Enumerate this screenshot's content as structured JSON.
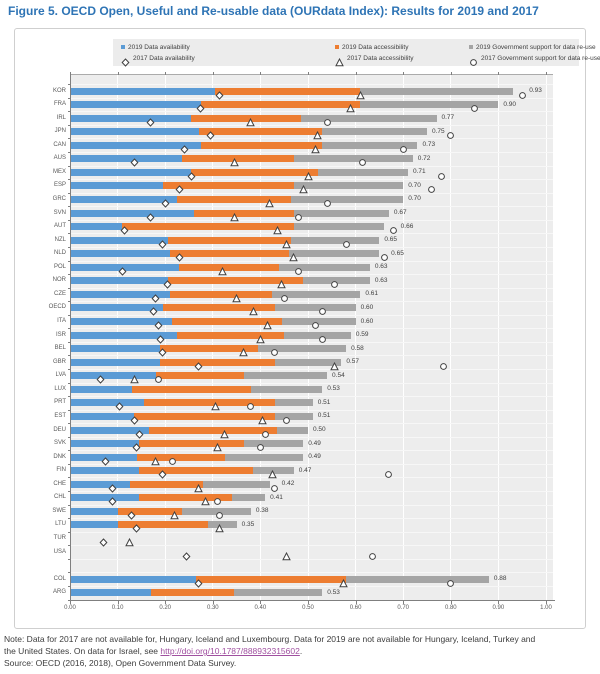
{
  "title": "Figure 5. OECD Open, Useful and Re-usable data (OURdata Index): Results for 2019 and 2017",
  "legend": {
    "items_2019": [
      {
        "label": "2019 Data availability",
        "color": "#5B9BD5",
        "marker": "square"
      },
      {
        "label": "2019 Data accessibility",
        "color": "#ED7D31",
        "marker": "square"
      },
      {
        "label": "2019 Government support for data re-use",
        "color": "#A5A5A5",
        "marker": "square"
      }
    ],
    "items_2017": [
      {
        "label": "2017 Data availability",
        "marker": "diamond"
      },
      {
        "label": "2017 Data accessibility",
        "marker": "triangle"
      },
      {
        "label": "2017 Government support for data re-use",
        "marker": "circle"
      }
    ]
  },
  "chart_data": {
    "type": "bar",
    "orientation": "horizontal-stacked",
    "xlim": [
      0,
      1
    ],
    "xticks": [
      "0.00",
      "0.10",
      "0.20",
      "0.30",
      "0.40",
      "0.50",
      "0.60",
      "0.70",
      "0.80",
      "0.90",
      "1.00"
    ],
    "grid": "white vertical gridlines on light-gray panel",
    "legend_position": "top",
    "series": [
      "2019 Data availability",
      "2019 Data accessibility",
      "2019 Government support for data re-use"
    ],
    "markers_2017": [
      "2017 Data availability (diamond)",
      "2017 Data availability + accessibility (triangle)",
      "2017 Overall index (circle)"
    ],
    "colors": {
      "availability": "#5B9BD5",
      "accessibility": "#ED7D31",
      "gov_support": "#A5A5A5",
      "marker_stroke": "#404040"
    },
    "rows": [
      {
        "code": "KOR",
        "availability": 0.305,
        "accessibility": 0.305,
        "gov_support": 0.32,
        "total": 0.93,
        "total_label": "0.93",
        "m2017": {
          "availability": 0.315,
          "accessibility_cum": 0.61,
          "total": 0.95
        }
      },
      {
        "code": "FRA",
        "availability": 0.275,
        "accessibility": 0.335,
        "gov_support": 0.29,
        "total": 0.9,
        "total_label": "0.90",
        "m2017": {
          "availability": 0.275,
          "accessibility_cum": 0.59,
          "total": 0.85
        }
      },
      {
        "code": "IRL",
        "availability": 0.255,
        "accessibility": 0.23,
        "gov_support": 0.285,
        "total": 0.77,
        "total_label": "0.77",
        "m2017": {
          "availability": 0.17,
          "accessibility_cum": 0.38,
          "total": 0.54
        }
      },
      {
        "code": "JPN",
        "availability": 0.27,
        "accessibility": 0.26,
        "gov_support": 0.22,
        "total": 0.75,
        "total_label": "0.75",
        "m2017": {
          "availability": 0.295,
          "accessibility_cum": 0.52,
          "total": 0.8
        }
      },
      {
        "code": "CAN",
        "availability": 0.275,
        "accessibility": 0.255,
        "gov_support": 0.2,
        "total": 0.73,
        "total_label": "0.73",
        "m2017": {
          "availability": 0.24,
          "accessibility_cum": 0.515,
          "total": 0.7
        }
      },
      {
        "code": "AUS",
        "availability": 0.235,
        "accessibility": 0.235,
        "gov_support": 0.25,
        "total": 0.72,
        "total_label": "0.72",
        "m2017": {
          "availability": 0.135,
          "accessibility_cum": 0.345,
          "total": 0.615
        }
      },
      {
        "code": "MEX",
        "availability": 0.255,
        "accessibility": 0.265,
        "gov_support": 0.19,
        "total": 0.71,
        "total_label": "0.71",
        "m2017": {
          "availability": 0.255,
          "accessibility_cum": 0.5,
          "total": 0.78
        }
      },
      {
        "code": "ESP",
        "availability": 0.195,
        "accessibility": 0.275,
        "gov_support": 0.23,
        "total": 0.7,
        "total_label": "0.70",
        "m2017": {
          "availability": 0.23,
          "accessibility_cum": 0.49,
          "total": 0.76
        }
      },
      {
        "code": "GRC",
        "availability": 0.225,
        "accessibility": 0.24,
        "gov_support": 0.235,
        "total": 0.7,
        "total_label": "0.70",
        "m2017": {
          "availability": 0.2,
          "accessibility_cum": 0.42,
          "total": 0.54
        }
      },
      {
        "code": "SVN",
        "availability": 0.26,
        "accessibility": 0.21,
        "gov_support": 0.2,
        "total": 0.67,
        "total_label": "0.67",
        "m2017": {
          "availability": 0.17,
          "accessibility_cum": 0.345,
          "total": 0.48
        }
      },
      {
        "code": "AUT",
        "availability": 0.11,
        "accessibility": 0.36,
        "gov_support": 0.19,
        "total": 0.66,
        "total_label": "0.66",
        "m2017": {
          "availability": 0.115,
          "accessibility_cum": 0.435,
          "total": 0.68
        }
      },
      {
        "code": "NZL",
        "availability": 0.205,
        "accessibility": 0.26,
        "gov_support": 0.185,
        "total": 0.65,
        "total_label": "0.65",
        "m2017": {
          "availability": 0.195,
          "accessibility_cum": 0.455,
          "total": 0.58
        }
      },
      {
        "code": "NLD",
        "availability": 0.21,
        "accessibility": 0.25,
        "gov_support": 0.19,
        "total": 0.65,
        "total_label": "0.65",
        "m2017": {
          "availability": 0.23,
          "accessibility_cum": 0.47,
          "total": 0.66
        }
      },
      {
        "code": "POL",
        "availability": 0.23,
        "accessibility": 0.21,
        "gov_support": 0.19,
        "total": 0.63,
        "total_label": "0.63",
        "m2017": {
          "availability": 0.11,
          "accessibility_cum": 0.32,
          "total": 0.48
        }
      },
      {
        "code": "NOR",
        "availability": 0.205,
        "accessibility": 0.285,
        "gov_support": 0.14,
        "total": 0.63,
        "total_label": "0.63",
        "m2017": {
          "availability": 0.205,
          "accessibility_cum": 0.445,
          "total": 0.555
        }
      },
      {
        "code": "CZE",
        "availability": 0.21,
        "accessibility": 0.215,
        "gov_support": 0.185,
        "total": 0.61,
        "total_label": "0.61",
        "m2017": {
          "availability": 0.18,
          "accessibility_cum": 0.35,
          "total": 0.45
        }
      },
      {
        "code": "OECD",
        "availability": 0.195,
        "accessibility": 0.235,
        "gov_support": 0.17,
        "total": 0.6,
        "total_label": "0.60",
        "m2017": {
          "availability": 0.175,
          "accessibility_cum": 0.385,
          "total": 0.53
        }
      },
      {
        "code": "ITA",
        "availability": 0.215,
        "accessibility": 0.23,
        "gov_support": 0.155,
        "total": 0.6,
        "total_label": "0.60",
        "m2017": {
          "availability": 0.185,
          "accessibility_cum": 0.415,
          "total": 0.515
        }
      },
      {
        "code": "ISR",
        "availability": 0.225,
        "accessibility": 0.225,
        "gov_support": 0.14,
        "total": 0.59,
        "total_label": "0.59",
        "m2017": {
          "availability": 0.19,
          "accessibility_cum": 0.4,
          "total": 0.53
        }
      },
      {
        "code": "BEL",
        "availability": 0.19,
        "accessibility": 0.205,
        "gov_support": 0.185,
        "total": 0.58,
        "total_label": "0.58",
        "m2017": {
          "availability": 0.195,
          "accessibility_cum": 0.365,
          "total": 0.43
        }
      },
      {
        "code": "GBR",
        "availability": 0.19,
        "accessibility": 0.24,
        "gov_support": 0.14,
        "total": 0.57,
        "total_label": "0.57",
        "m2017": {
          "availability": 0.27,
          "accessibility_cum": 0.555,
          "total": 0.785
        }
      },
      {
        "code": "LVA",
        "availability": 0.18,
        "accessibility": 0.185,
        "gov_support": 0.175,
        "total": 0.54,
        "total_label": "0.54",
        "m2017": {
          "availability": 0.065,
          "accessibility_cum": 0.135,
          "total": 0.185
        }
      },
      {
        "code": "LUX",
        "availability": 0.13,
        "accessibility": 0.25,
        "gov_support": 0.15,
        "total": 0.53,
        "total_label": "0.53",
        "m2017": null
      },
      {
        "code": "PRT",
        "availability": 0.155,
        "accessibility": 0.275,
        "gov_support": 0.08,
        "total": 0.51,
        "total_label": "0.51",
        "m2017": {
          "availability": 0.105,
          "accessibility_cum": 0.305,
          "total": 0.38
        }
      },
      {
        "code": "EST",
        "availability": 0.135,
        "accessibility": 0.295,
        "gov_support": 0.08,
        "total": 0.51,
        "total_label": "0.51",
        "m2017": {
          "availability": 0.135,
          "accessibility_cum": 0.405,
          "total": 0.455
        }
      },
      {
        "code": "DEU",
        "availability": 0.165,
        "accessibility": 0.27,
        "gov_support": 0.065,
        "total": 0.5,
        "total_label": "0.50",
        "m2017": {
          "availability": 0.145,
          "accessibility_cum": 0.325,
          "total": 0.41
        }
      },
      {
        "code": "SVK",
        "availability": 0.145,
        "accessibility": 0.22,
        "gov_support": 0.125,
        "total": 0.49,
        "total_label": "0.49",
        "m2017": {
          "availability": 0.14,
          "accessibility_cum": 0.31,
          "total": 0.4
        }
      },
      {
        "code": "DNK",
        "availability": 0.14,
        "accessibility": 0.185,
        "gov_support": 0.165,
        "total": 0.49,
        "total_label": "0.49",
        "m2017": {
          "availability": 0.075,
          "accessibility_cum": 0.18,
          "total": 0.215
        }
      },
      {
        "code": "FIN",
        "availability": 0.145,
        "accessibility": 0.24,
        "gov_support": 0.085,
        "total": 0.47,
        "total_label": "0.47",
        "m2017": {
          "availability": 0.195,
          "accessibility_cum": 0.425,
          "total": 0.67
        }
      },
      {
        "code": "CHE",
        "availability": 0.125,
        "accessibility": 0.155,
        "gov_support": 0.14,
        "total": 0.42,
        "total_label": "0.42",
        "m2017": {
          "availability": 0.09,
          "accessibility_cum": 0.27,
          "total": 0.43
        }
      },
      {
        "code": "CHL",
        "availability": 0.145,
        "accessibility": 0.195,
        "gov_support": 0.07,
        "total": 0.41,
        "total_label": "0.41",
        "m2017": {
          "availability": 0.09,
          "accessibility_cum": 0.285,
          "total": 0.31
        }
      },
      {
        "code": "SWE",
        "availability": 0.1,
        "accessibility": 0.135,
        "gov_support": 0.145,
        "total": 0.38,
        "total_label": "0.38",
        "m2017": {
          "availability": 0.13,
          "accessibility_cum": 0.22,
          "total": 0.315
        }
      },
      {
        "code": "LTU",
        "availability": 0.1,
        "accessibility": 0.19,
        "gov_support": 0.06,
        "total": 0.35,
        "total_label": "0.35",
        "m2017": {
          "availability": 0.14,
          "accessibility_cum": 0.315,
          "total": null
        }
      },
      {
        "code": "TUR",
        "availability": null,
        "accessibility": null,
        "gov_support": null,
        "total": null,
        "total_label": "",
        "m2017": {
          "availability": 0.07,
          "accessibility_cum": 0.125,
          "total": null
        }
      },
      {
        "code": "USA",
        "availability": null,
        "accessibility": null,
        "gov_support": null,
        "total": null,
        "total_label": "",
        "m2017": {
          "availability": 0.245,
          "accessibility_cum": 0.455,
          "total": 0.635
        }
      },
      {
        "code": "COL",
        "gap_before": true,
        "availability": 0.265,
        "accessibility": 0.315,
        "gov_support": 0.3,
        "total": 0.88,
        "total_label": "0.88",
        "m2017": {
          "availability": 0.27,
          "accessibility_cum": 0.575,
          "total": 0.8
        }
      },
      {
        "code": "ARG",
        "availability": 0.17,
        "accessibility": 0.175,
        "gov_support": 0.185,
        "total": 0.53,
        "total_label": "0.53",
        "m2017": null
      }
    ]
  },
  "note": {
    "line1": "Note: Data for 2017 are not available for, Hungary, Iceland and Luxembourg. Data for 2019 are not available for Hungary, Iceland, Turkey and",
    "line2_before_link": "the United States. On data for Israel, see ",
    "link_text": "http://doi.org/10.1787/888932315602",
    "line2_after_link": ".",
    "source": "Source: OECD (2016, 2018), Open Government Data Survey."
  }
}
